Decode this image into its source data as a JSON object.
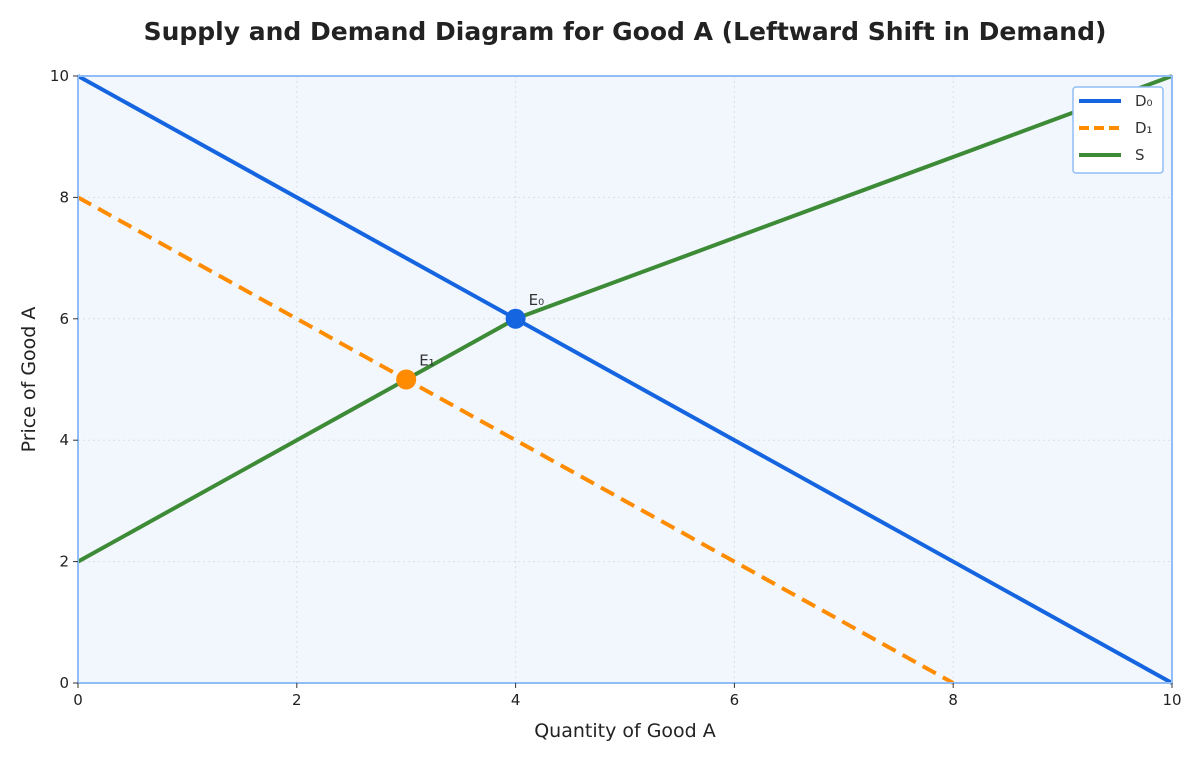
{
  "chart_data": {
    "type": "line",
    "title": "Supply and Demand Diagram for Good A (Leftward Shift in Demand)",
    "xlabel": "Quantity of Good A",
    "ylabel": "Price of Good A",
    "xlim": [
      0,
      10
    ],
    "ylim": [
      0,
      10
    ],
    "x_ticks": [
      0,
      2,
      4,
      6,
      8,
      10
    ],
    "y_ticks": [
      0,
      2,
      4,
      6,
      8,
      10
    ],
    "grid": true,
    "legend_position": "top-right",
    "series": [
      {
        "name": "D₀",
        "color": "#1565e0",
        "style": "solid",
        "x": [
          0,
          10
        ],
        "y": [
          10,
          0
        ]
      },
      {
        "name": "D₁",
        "color": "#ff8c00",
        "style": "dashed",
        "x": [
          0,
          8
        ],
        "y": [
          8,
          0
        ]
      },
      {
        "name": "S",
        "color": "#3d8b37",
        "style": "solid",
        "x": [
          0,
          4,
          10
        ],
        "y": [
          2,
          6,
          10
        ]
      }
    ],
    "points": [
      {
        "label": "E₀",
        "x": 4,
        "y": 6,
        "color": "#1565e0"
      },
      {
        "label": "E₁",
        "x": 3,
        "y": 5,
        "color": "#ff8c00"
      }
    ]
  },
  "colors": {
    "plot_background": "#f2f7fd",
    "plot_border": "#90bdf5"
  }
}
